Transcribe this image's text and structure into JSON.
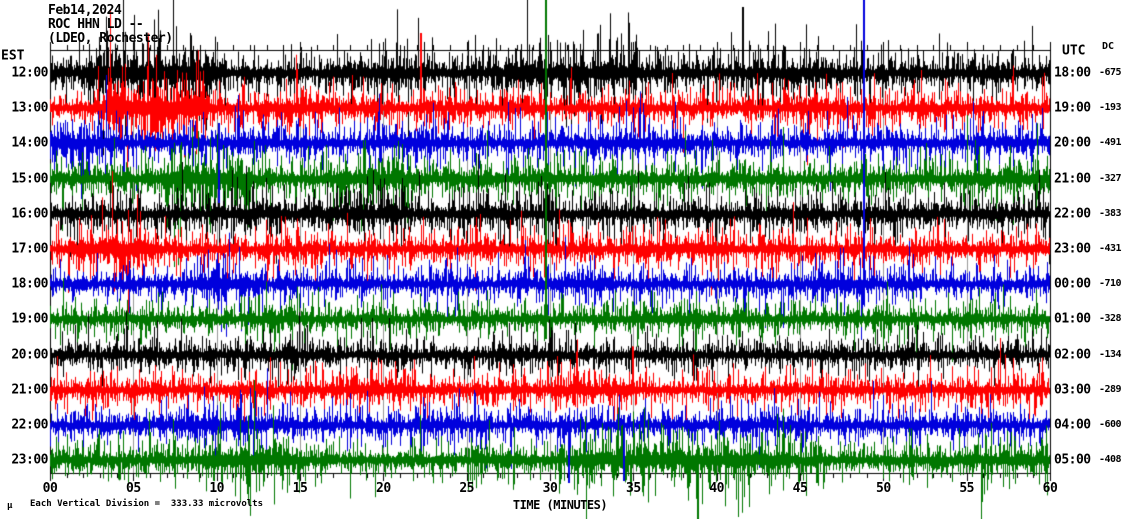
{
  "title": {
    "date": "Feb14,2024",
    "station": "ROC HHN LD --",
    "location": "(LDEO, Rochester)"
  },
  "axes": {
    "left_header": "EST",
    "right_header": "UTC",
    "dc_header": "DC",
    "x_title": "TIME (MINUTES)",
    "x_ticks": [
      "00",
      "05",
      "10",
      "15",
      "20",
      "25",
      "30",
      "35",
      "40",
      "45",
      "50",
      "55",
      "60"
    ]
  },
  "footer": {
    "micro_symbol": "µ",
    "scale_note": "Each Vertical Division =  333.33 microvolts"
  },
  "colors": {
    "black": "#000000",
    "red": "#ff0000",
    "blue": "#0000dd",
    "green": "#007700",
    "grid": "#999999",
    "frame": "#000000"
  },
  "chart_data": {
    "type": "line",
    "title": "ROC HHN LD -- helicorder, Feb14,2024",
    "xlabel": "TIME (MINUTES)",
    "x_range_minutes": [
      0,
      60
    ],
    "minutes_per_row": 60,
    "vertical_division_microvolts": 333.33,
    "x_tick_step_label": 5,
    "x_tick_step_minor": 1,
    "grid": "vertical gray lines every 5 minutes",
    "rows": [
      {
        "est": "12:00",
        "utc": "18:00",
        "dc": -675,
        "color": "black",
        "amp": 14,
        "seed": 11,
        "bursts": [
          [
            2.5,
            10,
            26
          ],
          [
            17,
            22,
            18
          ],
          [
            28,
            35,
            22
          ],
          [
            42,
            47,
            17
          ]
        ]
      },
      {
        "est": "13:00",
        "utc": "19:00",
        "dc": -193,
        "color": "red",
        "amp": 12,
        "seed": 22,
        "bursts": [
          [
            3.5,
            9,
            28
          ],
          [
            13,
            16,
            16
          ],
          [
            44,
            48,
            15
          ]
        ]
      },
      {
        "est": "14:00",
        "utc": "20:00",
        "dc": -491,
        "color": "blue",
        "amp": 12,
        "seed": 33,
        "bursts": [
          [
            0,
            4,
            17
          ],
          [
            20,
            24,
            15
          ],
          [
            33,
            38,
            15
          ]
        ]
      },
      {
        "est": "15:00",
        "utc": "21:00",
        "dc": -327,
        "color": "green",
        "amp": 13,
        "seed": 44,
        "bursts": [
          [
            7,
            12,
            22
          ],
          [
            17,
            22,
            19
          ],
          [
            55,
            60,
            16
          ]
        ]
      },
      {
        "est": "16:00",
        "utc": "22:00",
        "dc": -383,
        "color": "black",
        "amp": 13,
        "seed": 55,
        "bursts": [
          [
            10,
            14,
            16
          ],
          [
            17,
            21,
            19
          ],
          [
            25,
            30,
            15
          ]
        ]
      },
      {
        "est": "17:00",
        "utc": "23:00",
        "dc": -431,
        "color": "red",
        "amp": 12,
        "seed": 66,
        "bursts": [
          [
            2,
            6,
            22
          ],
          [
            36,
            40,
            14
          ]
        ]
      },
      {
        "est": "18:00",
        "utc": "00:00",
        "dc": -710,
        "color": "blue",
        "amp": 11,
        "seed": 77,
        "bursts": [
          [
            9,
            12,
            17
          ],
          [
            30,
            33,
            14
          ],
          [
            46,
            49,
            15
          ]
        ]
      },
      {
        "est": "19:00",
        "utc": "01:00",
        "dc": -328,
        "color": "green",
        "amp": 11,
        "seed": 88,
        "bursts": [
          [
            13,
            15,
            14
          ],
          [
            35,
            40,
            14
          ]
        ]
      },
      {
        "est": "20:00",
        "utc": "02:00",
        "dc": -134,
        "color": "black",
        "amp": 11,
        "seed": 99,
        "bursts": [
          [
            5,
            8,
            13
          ],
          [
            12,
            16,
            14
          ],
          [
            27,
            30,
            13
          ]
        ]
      },
      {
        "est": "21:00",
        "utc": "03:00",
        "dc": -289,
        "color": "red",
        "amp": 11,
        "seed": 110,
        "bursts": [
          [
            18,
            22,
            14
          ],
          [
            30,
            34,
            14
          ],
          [
            55,
            59,
            13
          ]
        ]
      },
      {
        "est": "22:00",
        "utc": "04:00",
        "dc": -600,
        "color": "blue",
        "amp": 11,
        "seed": 121,
        "bursts": [
          [
            8,
            13,
            16
          ],
          [
            22,
            26,
            14
          ],
          [
            42,
            45,
            13
          ]
        ]
      },
      {
        "est": "23:00",
        "utc": "05:00",
        "dc": -408,
        "color": "green",
        "amp": 12,
        "seed": 132,
        "bursts": [
          [
            9,
            14,
            20
          ],
          [
            26,
            28,
            16
          ],
          [
            32,
            44,
            20
          ],
          [
            55,
            60,
            15
          ]
        ]
      }
    ],
    "tall_spikes": [
      {
        "row": 6,
        "minute": 48.8,
        "up": 284,
        "down": 16
      },
      {
        "row": 7,
        "minute": 29.7,
        "up": 319,
        "down": 20
      },
      {
        "row": 0,
        "minute": 41.5,
        "up": 66,
        "down": 10
      },
      {
        "row": 1,
        "minute": 22.2,
        "up": 75,
        "down": 12
      },
      {
        "row": 2,
        "minute": 10.05,
        "up": 20,
        "down": 60
      },
      {
        "row": 10,
        "minute": 31.1,
        "up": 10,
        "down": 58
      },
      {
        "row": 10,
        "minute": 34.4,
        "up": 10,
        "down": 56
      },
      {
        "row": 11,
        "minute": 38.8,
        "up": 15,
        "down": 60
      }
    ]
  }
}
